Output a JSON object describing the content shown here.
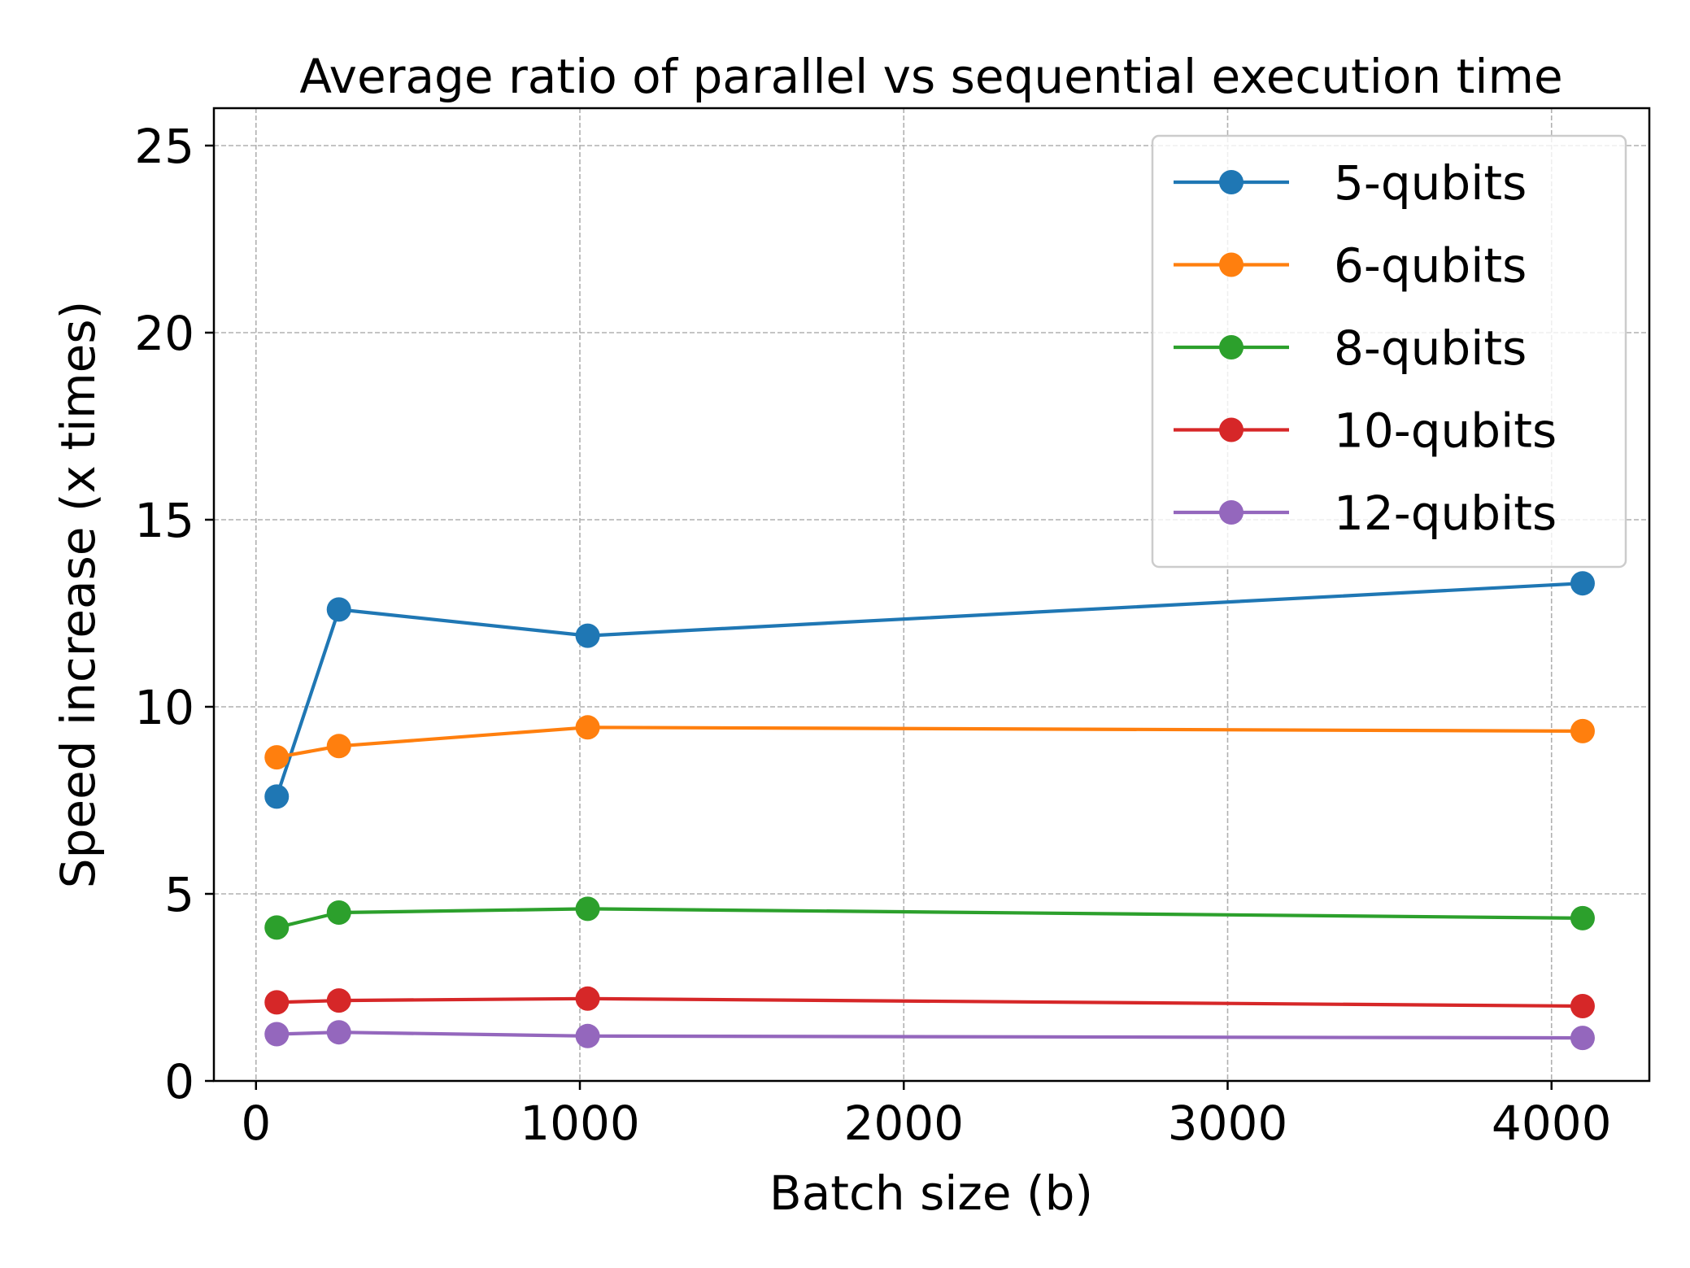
{
  "chart_data": {
    "type": "line",
    "title": "Average ratio of parallel vs sequential execution time",
    "xlabel": "Batch size (b)",
    "ylabel": "Speed increase (x times)",
    "xlim": [
      -130,
      4302
    ],
    "ylim": [
      0,
      26
    ],
    "xticks": [
      0,
      1000,
      2000,
      3000,
      4000
    ],
    "yticks": [
      0,
      5,
      10,
      15,
      20,
      25
    ],
    "xtick_labels": [
      "0",
      "1000",
      "2000",
      "3000",
      "4000"
    ],
    "ytick_labels": [
      "0",
      "5",
      "10",
      "15",
      "20",
      "25"
    ],
    "grid": true,
    "legend_position": "top-right",
    "x": [
      64,
      256,
      1024,
      4096
    ],
    "series": [
      {
        "name": "5-qubits",
        "color": "#1f77b4",
        "values": [
          7.6,
          12.6,
          11.9,
          13.3
        ]
      },
      {
        "name": "6-qubits",
        "color": "#ff7f0e",
        "values": [
          8.65,
          8.95,
          9.45,
          9.35
        ]
      },
      {
        "name": "8-qubits",
        "color": "#2ca02c",
        "values": [
          4.1,
          4.5,
          4.6,
          4.35
        ]
      },
      {
        "name": "10-qubits",
        "color": "#d62728",
        "values": [
          2.1,
          2.15,
          2.2,
          2.0
        ]
      },
      {
        "name": "12-qubits",
        "color": "#9467bd",
        "values": [
          1.25,
          1.3,
          1.2,
          1.15
        ]
      }
    ]
  }
}
